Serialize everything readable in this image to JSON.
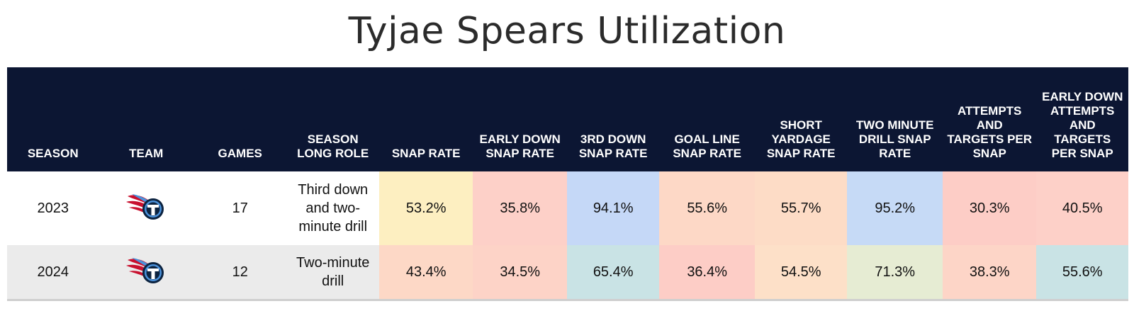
{
  "title": "Tyjae Spears Utilization",
  "columns": [
    "SEASON",
    "TEAM",
    "GAMES",
    "SEASON LONG ROLE",
    "SNAP RATE",
    "EARLY DOWN SNAP RATE",
    "3RD DOWN SNAP RATE",
    "GOAL LINE SNAP RATE",
    "SHORT YARDAGE SNAP RATE",
    "TWO MINUTE DRILL SNAP RATE",
    "ATTEMPTS AND TARGETS PER SNAP",
    "EARLY DOWN ATTEMPTS AND TARGETS PER SNAP"
  ],
  "rows": [
    {
      "season": "2023",
      "team_logo": "titans-logo",
      "games": "17",
      "role": "Third down and two-minute drill",
      "metrics": [
        {
          "value": "53.2%",
          "color": "#fdefc1"
        },
        {
          "value": "35.8%",
          "color": "#fdd0c8"
        },
        {
          "value": "94.1%",
          "color": "#c5d8f7"
        },
        {
          "value": "55.6%",
          "color": "#fdd8c6"
        },
        {
          "value": "55.7%",
          "color": "#fddcc6"
        },
        {
          "value": "95.2%",
          "color": "#c6daf6"
        },
        {
          "value": "30.3%",
          "color": "#fdcdc6"
        },
        {
          "value": "40.5%",
          "color": "#fdd0c8"
        }
      ]
    },
    {
      "season": "2024",
      "team_logo": "titans-logo",
      "games": "12",
      "role": "Two-minute drill",
      "metrics": [
        {
          "value": "43.4%",
          "color": "#fdd8c6"
        },
        {
          "value": "34.5%",
          "color": "#fdd3c7"
        },
        {
          "value": "65.4%",
          "color": "#c9e3e5"
        },
        {
          "value": "36.4%",
          "color": "#fdcdc6"
        },
        {
          "value": "54.5%",
          "color": "#fde0c8"
        },
        {
          "value": "71.3%",
          "color": "#e6ecd3"
        },
        {
          "value": "38.3%",
          "color": "#fdd5c7"
        },
        {
          "value": "55.6%",
          "color": "#c9e3e5"
        }
      ]
    }
  ],
  "colors": {
    "header_bg": "#0c1633",
    "row_alt_bg": "#ebebeb"
  }
}
